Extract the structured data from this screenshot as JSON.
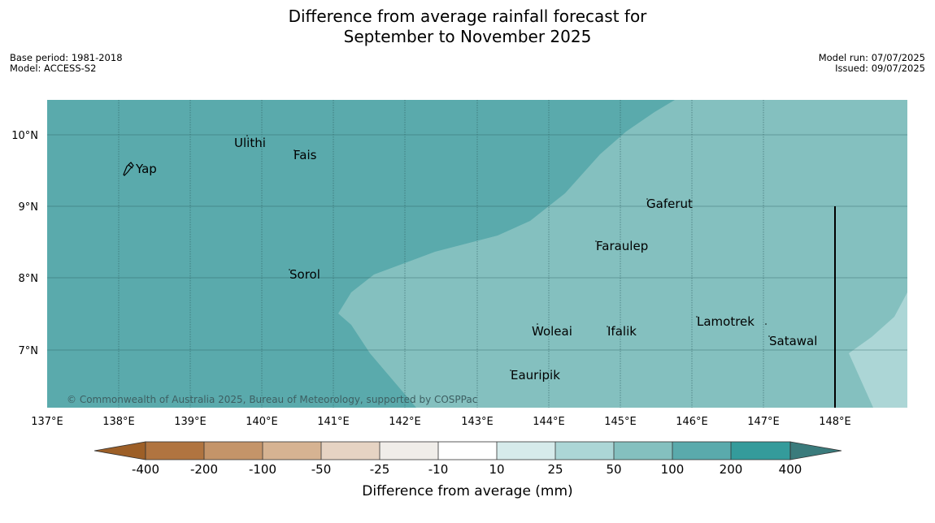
{
  "title": {
    "line1": "Difference from average rainfall forecast for",
    "line2": "September to November 2025"
  },
  "meta_left": {
    "base_period": "Base period: 1981-2018",
    "model": "Model: ACCESS-S2"
  },
  "meta_right": {
    "model_run": "Model run: 07/07/2025",
    "issued": "Issued: 09/07/2025"
  },
  "map": {
    "lon_range": [
      137,
      149
    ],
    "lat_range": [
      6.2,
      10.5
    ],
    "lon_ticks": [
      "137°E",
      "138°E",
      "139°E",
      "140°E",
      "141°E",
      "142°E",
      "143°E",
      "144°E",
      "145°E",
      "146°E",
      "147°E",
      "148°E"
    ],
    "lat_ticks": [
      "10°N",
      "9°N",
      "8°N",
      "7°N"
    ],
    "places": [
      {
        "name": "Yap",
        "lon": 138.2,
        "lat": 9.55
      },
      {
        "name": "Ulithi",
        "lon": 139.65,
        "lat": 9.9
      },
      {
        "name": "Fais",
        "lon": 140.45,
        "lat": 9.75
      },
      {
        "name": "Gaferut",
        "lon": 145.35,
        "lat": 9.05
      },
      {
        "name": "Faraulep",
        "lon": 144.65,
        "lat": 8.45
      },
      {
        "name": "Sorol",
        "lon": 140.4,
        "lat": 8.05
      },
      {
        "name": "Lamotrek",
        "lon": 146.05,
        "lat": 7.4
      },
      {
        "name": "Woleai",
        "lon": 143.8,
        "lat": 7.3
      },
      {
        "name": "Ifalik",
        "lon": 144.8,
        "lat": 7.3
      },
      {
        "name": "Satawal",
        "lon": 147.1,
        "lat": 7.15
      },
      {
        "name": "Eauripik",
        "lon": 143.5,
        "lat": 6.65
      }
    ],
    "colors": {
      "band_100_200": "#5aaaac",
      "band_50_100": "#84c0bf",
      "band_25_50": "#acd6d6"
    },
    "copyright": "© Commonwealth of Australia 2025, Bureau of Meteorology, supported by COSPPac"
  },
  "colorbar": {
    "labels": [
      "-400",
      "-200",
      "-100",
      "-50",
      "-25",
      "-10",
      "10",
      "25",
      "50",
      "100",
      "200",
      "400"
    ],
    "colors": [
      "#9d5f27",
      "#b07440",
      "#c49469",
      "#d6b392",
      "#e6d3c3",
      "#f0ede9",
      "#ffffff",
      "#d6ebeb",
      "#acd6d6",
      "#84c0bf",
      "#5aaaac",
      "#349b9b",
      "#3a7b7c"
    ],
    "title": "Difference from average (mm)"
  }
}
